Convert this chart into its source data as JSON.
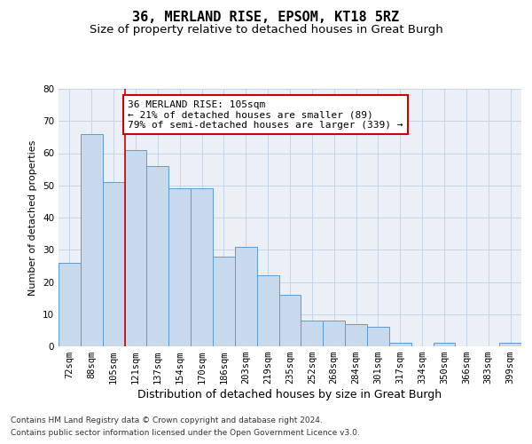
{
  "title1": "36, MERLAND RISE, EPSOM, KT18 5RZ",
  "title2": "Size of property relative to detached houses in Great Burgh",
  "xlabel": "Distribution of detached houses by size in Great Burgh",
  "ylabel": "Number of detached properties",
  "categories": [
    "72sqm",
    "88sqm",
    "105sqm",
    "121sqm",
    "137sqm",
    "154sqm",
    "170sqm",
    "186sqm",
    "203sqm",
    "219sqm",
    "235sqm",
    "252sqm",
    "268sqm",
    "284sqm",
    "301sqm",
    "317sqm",
    "334sqm",
    "350sqm",
    "366sqm",
    "383sqm",
    "399sqm"
  ],
  "values": [
    26,
    66,
    51,
    61,
    56,
    49,
    49,
    28,
    31,
    22,
    16,
    8,
    8,
    7,
    6,
    1,
    0,
    1,
    0,
    0,
    1
  ],
  "bar_color": "#c8d9eb",
  "bar_edgecolor": "#5b9bd5",
  "highlight_index": 2,
  "highlight_line_color": "#cc0000",
  "ylim": [
    0,
    80
  ],
  "yticks": [
    0,
    10,
    20,
    30,
    40,
    50,
    60,
    70,
    80
  ],
  "annotation_title": "36 MERLAND RISE: 105sqm",
  "annotation_line1": "← 21% of detached houses are smaller (89)",
  "annotation_line2": "79% of semi-detached houses are larger (339) →",
  "annotation_box_color": "#ffffff",
  "annotation_box_edgecolor": "#cc0000",
  "footnote1": "Contains HM Land Registry data © Crown copyright and database right 2024.",
  "footnote2": "Contains public sector information licensed under the Open Government Licence v3.0.",
  "bg_color": "#ffffff",
  "plot_bg_color": "#eaf0f6",
  "grid_color": "#c5d5e5",
  "title_fontsize": 11,
  "subtitle_fontsize": 9.5,
  "xlabel_fontsize": 9,
  "ylabel_fontsize": 8,
  "tick_fontsize": 7.5,
  "annotation_fontsize": 8,
  "footnote_fontsize": 6.5
}
